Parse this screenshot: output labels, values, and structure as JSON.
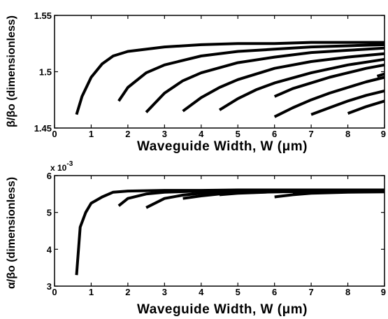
{
  "chart_data": [
    {
      "type": "line",
      "title": "",
      "xlabel": "Waveguide Width, W (μm)",
      "ylabel": "β/βo (dimensionless)",
      "xlim": [
        0,
        9
      ],
      "ylim": [
        1.45,
        1.55
      ],
      "xticks": [
        "0",
        "1",
        "2",
        "3",
        "4",
        "5",
        "6",
        "7",
        "8",
        "9"
      ],
      "yticks": [
        "1.45",
        "1.5",
        "1.55"
      ],
      "grid": false,
      "series": [
        {
          "x": [
            0.6,
            0.75,
            1.0,
            1.3,
            1.6,
            2.0,
            3.0,
            4.0,
            5.0,
            6.0,
            7.0,
            8.0,
            9.0
          ],
          "y": [
            1.462,
            1.478,
            1.495,
            1.507,
            1.514,
            1.518,
            1.522,
            1.524,
            1.525,
            1.525,
            1.526,
            1.526,
            1.526
          ]
        },
        {
          "x": [
            1.75,
            2.0,
            2.5,
            3.0,
            4.0,
            5.0,
            6.0,
            7.0,
            8.0,
            9.0
          ],
          "y": [
            1.474,
            1.486,
            1.499,
            1.506,
            1.514,
            1.518,
            1.52,
            1.522,
            1.523,
            1.524
          ]
        },
        {
          "x": [
            2.5,
            3.0,
            3.5,
            4.0,
            5.0,
            6.0,
            7.0,
            8.0,
            9.0
          ],
          "y": [
            1.464,
            1.481,
            1.492,
            1.499,
            1.508,
            1.513,
            1.517,
            1.519,
            1.521
          ]
        },
        {
          "x": [
            3.5,
            4.0,
            4.5,
            5.0,
            6.0,
            7.0,
            8.0,
            9.0
          ],
          "y": [
            1.465,
            1.477,
            1.486,
            1.493,
            1.503,
            1.509,
            1.513,
            1.516
          ]
        },
        {
          "x": [
            4.5,
            5.0,
            5.5,
            6.0,
            7.0,
            8.0,
            9.0
          ],
          "y": [
            1.466,
            1.476,
            1.484,
            1.49,
            1.499,
            1.506,
            1.511
          ]
        },
        {
          "x": [
            6.0,
            6.5,
            7.0,
            7.5,
            8.0,
            8.5,
            9.0
          ],
          "y": [
            1.478,
            1.485,
            1.49,
            1.495,
            1.499,
            1.503,
            1.506
          ]
        },
        {
          "x": [
            6.0,
            6.5,
            7.0,
            7.5,
            8.0,
            8.5,
            9.0
          ],
          "y": [
            1.46,
            1.468,
            1.475,
            1.481,
            1.486,
            1.491,
            1.495
          ]
        },
        {
          "x": [
            7.0,
            7.5,
            8.0,
            8.5,
            9.0
          ],
          "y": [
            1.462,
            1.468,
            1.474,
            1.479,
            1.483
          ]
        },
        {
          "x": [
            8.0,
            8.5,
            9.0
          ],
          "y": [
            1.463,
            1.469,
            1.474
          ]
        },
        {
          "x": [
            8.8,
            9.0
          ],
          "y": [
            1.496,
            1.498
          ]
        }
      ]
    },
    {
      "type": "line",
      "title": "",
      "xlabel": "Waveguide Width, W (μm)",
      "ylabel": "α/βo (dimensionless)",
      "xlim": [
        0,
        9
      ],
      "ylim": [
        3,
        6
      ],
      "xticks": [
        "0",
        "1",
        "2",
        "3",
        "4",
        "5",
        "6",
        "7",
        "8",
        "9"
      ],
      "yticks": [
        "3",
        "4",
        "5",
        "6"
      ],
      "exponent_label": "x 10",
      "exponent": "-3",
      "grid": false,
      "series": [
        {
          "x": [
            0.6,
            0.7,
            0.85,
            1.0,
            1.3,
            1.6,
            2.0,
            3.0,
            4.0,
            5.0,
            6.0,
            7.0,
            8.0,
            9.0
          ],
          "y": [
            3.3,
            4.6,
            5.0,
            5.25,
            5.42,
            5.55,
            5.58,
            5.6,
            5.6,
            5.61,
            5.61,
            5.61,
            5.61,
            5.61
          ]
        },
        {
          "x": [
            1.75,
            2.0,
            2.5,
            3.0,
            4.0,
            5.0,
            6.0,
            7.0,
            8.0,
            9.0
          ],
          "y": [
            5.18,
            5.38,
            5.5,
            5.55,
            5.58,
            5.59,
            5.6,
            5.6,
            5.6,
            5.6
          ]
        },
        {
          "x": [
            2.5,
            3.0,
            3.5,
            4.0,
            5.0,
            6.0,
            7.0,
            8.0,
            9.0
          ],
          "y": [
            5.13,
            5.38,
            5.47,
            5.52,
            5.56,
            5.58,
            5.59,
            5.59,
            5.6
          ]
        },
        {
          "x": [
            3.5,
            4.0,
            4.5,
            5.0,
            6.0,
            7.0,
            8.0,
            9.0
          ],
          "y": [
            5.38,
            5.45,
            5.5,
            5.53,
            5.56,
            5.58,
            5.58,
            5.59
          ]
        },
        {
          "x": [
            4.5,
            5.0,
            5.5,
            6.0,
            7.0,
            8.0,
            9.0
          ],
          "y": [
            5.48,
            5.52,
            5.54,
            5.56,
            5.57,
            5.58,
            5.58
          ]
        },
        {
          "x": [
            6.0,
            6.5,
            7.0,
            8.0,
            9.0
          ],
          "y": [
            5.42,
            5.48,
            5.52,
            5.55,
            5.56
          ]
        },
        {
          "x": [
            6.5,
            7.0,
            8.0,
            9.0
          ],
          "y": [
            5.55,
            5.57,
            5.58,
            5.58
          ]
        }
      ]
    }
  ]
}
